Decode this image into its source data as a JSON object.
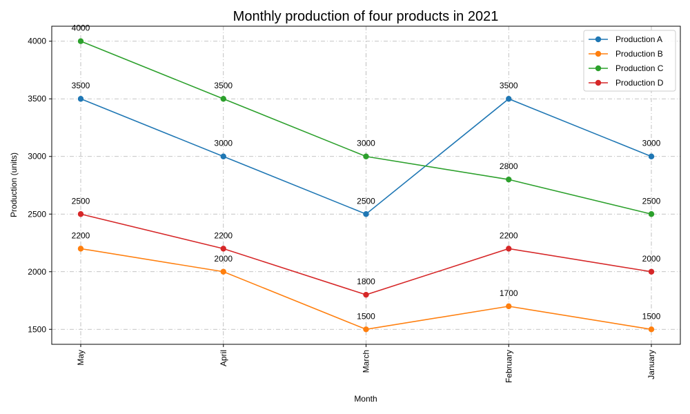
{
  "chart_data": {
    "type": "line",
    "title": "Monthly production of four products in 2021",
    "xlabel": "Month",
    "ylabel": "Production (units)",
    "categories": [
      "May",
      "April",
      "March",
      "February",
      "January"
    ],
    "yticks": [
      1500,
      2000,
      2500,
      3000,
      3500,
      4000
    ],
    "ylim": [
      1370,
      4130
    ],
    "grid": true,
    "legend_position": "top-right",
    "series": [
      {
        "name": "Production A",
        "color": "#1f77b4",
        "values": [
          3500,
          3000,
          2500,
          3500,
          3000
        ]
      },
      {
        "name": "Production B",
        "color": "#ff7f0e",
        "values": [
          2200,
          2000,
          1500,
          1700,
          1500
        ]
      },
      {
        "name": "Production C",
        "color": "#2ca02c",
        "values": [
          4000,
          3500,
          3000,
          2800,
          2500
        ]
      },
      {
        "name": "Production D",
        "color": "#d62728",
        "values": [
          2500,
          2200,
          1800,
          2200,
          2000
        ]
      }
    ]
  }
}
